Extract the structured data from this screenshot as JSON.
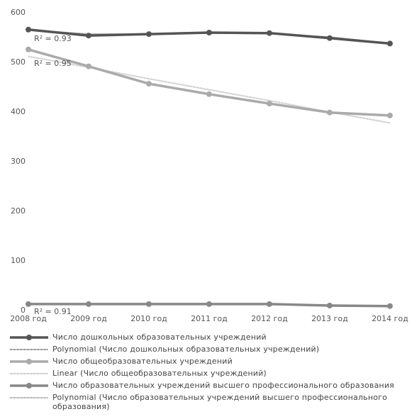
{
  "chart_data": {
    "type": "line",
    "categories": [
      "2008 год",
      "2009 год",
      "2010 год",
      "2011 год",
      "2012 год",
      "2013 год",
      "2014 год"
    ],
    "series": [
      {
        "name": "Число дошкольных образовательных учреждений",
        "color": "#555555",
        "style": "solid",
        "values": [
          566,
          554,
          557,
          560,
          559,
          549,
          538
        ]
      },
      {
        "name": "Polynomial (Число дошкольных образовательных учреждений)",
        "color": "#555555",
        "style": "dotted",
        "values": [
          565,
          557,
          557,
          559,
          558,
          551,
          538
        ]
      },
      {
        "name": "Число общеобразовательных учреждений",
        "color": "#aaaaaa",
        "style": "solid",
        "values": [
          526,
          492,
          457,
          436,
          417,
          399,
          393
        ]
      },
      {
        "name": "Linear (Число общеобразовательных учреждений)",
        "color": "#aaaaaa",
        "style": "dotted",
        "values": [
          512,
          490,
          467,
          445,
          423,
          400,
          378
        ]
      },
      {
        "name": "Число образовательных учреждений высшего профессионального образования",
        "color": "#888888",
        "style": "solid",
        "values": [
          13,
          13,
          13,
          13,
          13,
          10,
          9
        ]
      },
      {
        "name": "Polynomial (Число образовательных учреждений высшего профессионального образования)",
        "color": "#888888",
        "style": "dotted",
        "values": [
          13,
          13,
          13,
          13,
          12,
          11,
          9
        ]
      }
    ],
    "annotations": [
      "R² = 0.93",
      "R² = 0.95",
      "R² = 0.91"
    ],
    "ylim": [
      0,
      600
    ],
    "yticks": [
      0,
      100,
      200,
      300,
      400,
      500,
      600
    ],
    "grid": false
  }
}
